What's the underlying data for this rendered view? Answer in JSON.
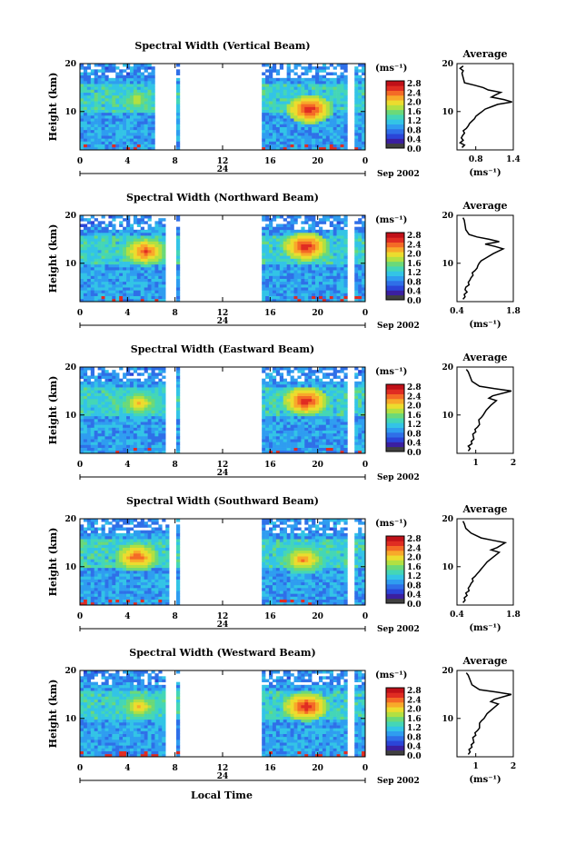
{
  "colors": {
    "colorbar": [
      "#404040",
      "#3b1fa0",
      "#2b45d8",
      "#2f6fe8",
      "#2f9df0",
      "#33c4e6",
      "#44d6b6",
      "#6bd979",
      "#b2e042",
      "#ecdc2e",
      "#f8a92a",
      "#f46a26",
      "#e02c22",
      "#c01018"
    ]
  },
  "labels": {
    "local_time": "Local Time",
    "date_label": "Sep 2002",
    "day_label": "24"
  },
  "chart_data": [
    {
      "type": "heatmap",
      "title": "Spectral Width (Vertical Beam)",
      "ylabel": "Height (km)",
      "xlim": [
        0,
        24
      ],
      "ylim": [
        2,
        20
      ],
      "x_ticks": [
        "0",
        "4",
        "8",
        "12",
        "16",
        "20",
        "0"
      ],
      "y_ticks": [
        "20",
        "10"
      ],
      "colorbar": {
        "unit": "(ms⁻¹)",
        "ticks": [
          "2.8",
          "2.4",
          "2.0",
          "1.6",
          "1.2",
          "0.8",
          "0.4",
          "0.0"
        ],
        "range": [
          0,
          3.0
        ]
      },
      "data_gaps": [
        [
          6.2,
          8.0
        ],
        [
          8.4,
          15.2
        ],
        [
          22.6,
          23.0
        ]
      ],
      "hotspots": [
        {
          "x": 19.3,
          "y": 10.5,
          "value": 2.8
        },
        {
          "x": 4.8,
          "y": 12.5,
          "value": 1.9
        }
      ],
      "profile": {
        "title": "Average",
        "xlabel": "(ms⁻¹)",
        "xlim": [
          0.5,
          1.4
        ],
        "x_ticks": [
          "0.8",
          "1.4"
        ],
        "y_ticks": [
          "20",
          "10"
        ],
        "points": [
          [
            0.58,
            2.5
          ],
          [
            0.62,
            3
          ],
          [
            0.55,
            3.5
          ],
          [
            0.6,
            4
          ],
          [
            0.57,
            4.5
          ],
          [
            0.59,
            5
          ],
          [
            0.62,
            5.5
          ],
          [
            0.6,
            6
          ],
          [
            0.65,
            6.5
          ],
          [
            0.68,
            7
          ],
          [
            0.7,
            7.5
          ],
          [
            0.74,
            8
          ],
          [
            0.78,
            8.5
          ],
          [
            0.8,
            9
          ],
          [
            0.85,
            9.5
          ],
          [
            0.9,
            10
          ],
          [
            0.95,
            10.5
          ],
          [
            1.05,
            11
          ],
          [
            1.15,
            11.5
          ],
          [
            1.38,
            12
          ],
          [
            1.25,
            12.5
          ],
          [
            1.05,
            13
          ],
          [
            1.12,
            13.5
          ],
          [
            1.2,
            14
          ],
          [
            1.0,
            14.5
          ],
          [
            0.92,
            15
          ],
          [
            0.78,
            15.5
          ],
          [
            0.62,
            16
          ],
          [
            0.6,
            17
          ],
          [
            0.58,
            18
          ],
          [
            0.6,
            18.5
          ],
          [
            0.55,
            19
          ],
          [
            0.6,
            19.5
          ]
        ]
      }
    },
    {
      "type": "heatmap",
      "title": "Spectral Width (Northward Beam)",
      "ylabel": "Height (km)",
      "xlim": [
        0,
        24
      ],
      "ylim": [
        2,
        20
      ],
      "x_ticks": [
        "0",
        "4",
        "8",
        "12",
        "16",
        "20",
        "0"
      ],
      "y_ticks": [
        "20",
        "10"
      ],
      "colorbar": {
        "unit": "(ms⁻¹)",
        "ticks": [
          "2.8",
          "2.4",
          "2.0",
          "1.6",
          "1.2",
          "0.8",
          "0.4",
          "0.0"
        ],
        "range": [
          0,
          3.0
        ]
      },
      "data_gaps": [
        [
          7.2,
          8.0
        ],
        [
          8.4,
          15.2
        ],
        [
          22.6,
          23.0
        ]
      ],
      "hotspots": [
        {
          "x": 19.0,
          "y": 13.5,
          "value": 2.8
        },
        {
          "x": 5.5,
          "y": 12.5,
          "value": 2.6
        }
      ],
      "profile": {
        "title": "Average",
        "xlabel": "(ms⁻¹)",
        "xlim": [
          0.4,
          1.8
        ],
        "x_ticks": [
          "0.4",
          "1.8"
        ],
        "y_ticks": [
          "20",
          "10"
        ],
        "points": [
          [
            0.55,
            2.5
          ],
          [
            0.6,
            3
          ],
          [
            0.58,
            3.5
          ],
          [
            0.65,
            4
          ],
          [
            0.6,
            4.5
          ],
          [
            0.62,
            5
          ],
          [
            0.7,
            5.5
          ],
          [
            0.68,
            6
          ],
          [
            0.72,
            6.5
          ],
          [
            0.75,
            7
          ],
          [
            0.8,
            7.5
          ],
          [
            0.78,
            8
          ],
          [
            0.85,
            8.5
          ],
          [
            0.9,
            9
          ],
          [
            0.92,
            9.5
          ],
          [
            0.95,
            10
          ],
          [
            1.0,
            10.5
          ],
          [
            1.1,
            11
          ],
          [
            1.3,
            12
          ],
          [
            1.55,
            13
          ],
          [
            1.35,
            13.5
          ],
          [
            1.1,
            14
          ],
          [
            1.45,
            14.5
          ],
          [
            1.2,
            15
          ],
          [
            0.9,
            15.5
          ],
          [
            0.7,
            16
          ],
          [
            0.62,
            17
          ],
          [
            0.6,
            18
          ],
          [
            0.58,
            19
          ],
          [
            0.55,
            19.5
          ]
        ]
      }
    },
    {
      "type": "heatmap",
      "title": "Spectral Width (Eastward Beam)",
      "ylabel": "Height (km)",
      "xlim": [
        0,
        24
      ],
      "ylim": [
        2,
        20
      ],
      "x_ticks": [
        "0",
        "4",
        "8",
        "12",
        "16",
        "20",
        "0"
      ],
      "y_ticks": [
        "20",
        "10"
      ],
      "colorbar": {
        "unit": "(ms⁻¹)",
        "ticks": [
          "2.8",
          "2.4",
          "2.0",
          "1.6",
          "1.2",
          "0.8",
          "0.4",
          "0.0"
        ],
        "range": [
          0,
          3.0
        ]
      },
      "data_gaps": [
        [
          7.2,
          8.0
        ],
        [
          8.4,
          15.2
        ],
        [
          22.6,
          23.0
        ]
      ],
      "hotspots": [
        {
          "x": 19.0,
          "y": 13.0,
          "value": 2.8
        },
        {
          "x": 5.0,
          "y": 12.5,
          "value": 2.2
        }
      ],
      "profile": {
        "title": "Average",
        "xlabel": "",
        "xlim": [
          0.5,
          2.0
        ],
        "x_ticks": [
          "1",
          "2"
        ],
        "y_ticks": [
          "20",
          "10"
        ],
        "points": [
          [
            0.8,
            2.5
          ],
          [
            0.85,
            3
          ],
          [
            0.8,
            3.5
          ],
          [
            0.9,
            4
          ],
          [
            0.88,
            4.5
          ],
          [
            0.95,
            5
          ],
          [
            0.92,
            6
          ],
          [
            1.0,
            6.5
          ],
          [
            0.98,
            7
          ],
          [
            1.05,
            7.5
          ],
          [
            1.1,
            8
          ],
          [
            1.08,
            9
          ],
          [
            1.15,
            9.5
          ],
          [
            1.2,
            10
          ],
          [
            1.28,
            11
          ],
          [
            1.4,
            12
          ],
          [
            1.55,
            13
          ],
          [
            1.35,
            13.5
          ],
          [
            1.45,
            14
          ],
          [
            1.95,
            15
          ],
          [
            1.5,
            15.5
          ],
          [
            1.1,
            16
          ],
          [
            0.9,
            17
          ],
          [
            0.85,
            18
          ],
          [
            0.8,
            19
          ],
          [
            0.75,
            19.5
          ]
        ]
      }
    },
    {
      "type": "heatmap",
      "title": "Spectral Width (Southward Beam)",
      "ylabel": "Height (km)",
      "xlim": [
        0,
        24
      ],
      "ylim": [
        2,
        20
      ],
      "x_ticks": [
        "0",
        "4",
        "8",
        "12",
        "16",
        "20",
        "0"
      ],
      "y_ticks": [
        "20",
        "10"
      ],
      "colorbar": {
        "unit": "(ms⁻¹)",
        "ticks": [
          "2.8",
          "2.4",
          "2.0",
          "1.6",
          "1.2",
          "0.8",
          "0.4",
          "0.0"
        ],
        "range": [
          0,
          3.0
        ]
      },
      "data_gaps": [
        [
          7.5,
          8.0
        ],
        [
          8.4,
          15.2
        ],
        [
          22.6,
          23.0
        ]
      ],
      "hotspots": [
        {
          "x": 18.8,
          "y": 11.5,
          "value": 2.4
        },
        {
          "x": 4.8,
          "y": 12.0,
          "value": 2.6
        }
      ],
      "profile": {
        "title": "Average",
        "xlabel": "(ms⁻¹)",
        "xlim": [
          0.4,
          1.8
        ],
        "x_ticks": [
          "0.4",
          "1.8"
        ],
        "y_ticks": [
          "20",
          "10"
        ],
        "points": [
          [
            0.55,
            2.5
          ],
          [
            0.6,
            3
          ],
          [
            0.58,
            3.5
          ],
          [
            0.65,
            4
          ],
          [
            0.62,
            4.5
          ],
          [
            0.7,
            5
          ],
          [
            0.68,
            5.5
          ],
          [
            0.72,
            6
          ],
          [
            0.75,
            6.5
          ],
          [
            0.8,
            7
          ],
          [
            0.78,
            7.5
          ],
          [
            0.85,
            8
          ],
          [
            0.9,
            8.5
          ],
          [
            0.95,
            9
          ],
          [
            1.0,
            9.5
          ],
          [
            1.05,
            10
          ],
          [
            1.15,
            11
          ],
          [
            1.3,
            12
          ],
          [
            1.45,
            13
          ],
          [
            1.25,
            13.5
          ],
          [
            1.4,
            14
          ],
          [
            1.6,
            15
          ],
          [
            1.3,
            15.5
          ],
          [
            1.0,
            16
          ],
          [
            0.75,
            17
          ],
          [
            0.62,
            18
          ],
          [
            0.58,
            19
          ],
          [
            0.55,
            19.5
          ]
        ]
      }
    },
    {
      "type": "heatmap",
      "title": "Spectral Width (Westward Beam)",
      "ylabel": "Height (km)",
      "xlim": [
        0,
        24
      ],
      "ylim": [
        2,
        20
      ],
      "x_ticks": [
        "0",
        "4",
        "8",
        "12",
        "16",
        "20",
        "0"
      ],
      "y_ticks": [
        "20",
        "10"
      ],
      "colorbar": {
        "unit": "(ms⁻¹)",
        "ticks": [
          "2.8",
          "2.4",
          "2.0",
          "1.6",
          "1.2",
          "0.8",
          "0.4",
          "0.0"
        ],
        "range": [
          0,
          3.0
        ]
      },
      "data_gaps": [
        [
          7.2,
          8.0
        ],
        [
          8.4,
          15.2
        ],
        [
          22.6,
          23.0
        ]
      ],
      "hotspots": [
        {
          "x": 19.0,
          "y": 12.5,
          "value": 2.8
        },
        {
          "x": 5.0,
          "y": 12.5,
          "value": 2.2
        }
      ],
      "profile": {
        "title": "Average",
        "xlabel": "(ms⁻¹)",
        "xlim": [
          0.5,
          2.0
        ],
        "x_ticks": [
          "1",
          "2"
        ],
        "y_ticks": [
          "20",
          "10"
        ],
        "points": [
          [
            0.8,
            2.5
          ],
          [
            0.85,
            3
          ],
          [
            0.82,
            3.5
          ],
          [
            0.9,
            4
          ],
          [
            0.88,
            4.5
          ],
          [
            0.95,
            5
          ],
          [
            0.92,
            6
          ],
          [
            1.0,
            6.5
          ],
          [
            0.98,
            7
          ],
          [
            1.05,
            7.5
          ],
          [
            1.1,
            8
          ],
          [
            1.1,
            9
          ],
          [
            1.15,
            9.5
          ],
          [
            1.22,
            10
          ],
          [
            1.3,
            11
          ],
          [
            1.45,
            12
          ],
          [
            1.6,
            13
          ],
          [
            1.4,
            13.5
          ],
          [
            1.5,
            14
          ],
          [
            1.95,
            15
          ],
          [
            1.55,
            15.5
          ],
          [
            1.1,
            16
          ],
          [
            0.9,
            17
          ],
          [
            0.85,
            18
          ],
          [
            0.8,
            19
          ],
          [
            0.75,
            19.5
          ]
        ]
      }
    }
  ]
}
